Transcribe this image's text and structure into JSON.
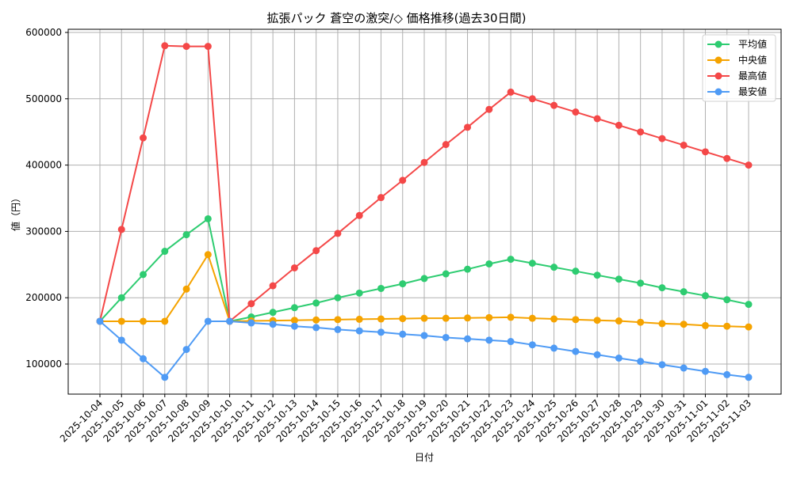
{
  "chart_data": {
    "type": "line",
    "title": "拡張パック 蒼空の激突/◇ 価格推移(過去30日間)",
    "xlabel": "日付",
    "ylabel": "値（円）",
    "ylim": [
      55000,
      605000
    ],
    "yticks": [
      100000,
      200000,
      300000,
      400000,
      500000,
      600000
    ],
    "ytick_labels": [
      "100000",
      "200000",
      "300000",
      "400000",
      "500000",
      "600000"
    ],
    "grid": true,
    "legend_position": "upper right",
    "x": [
      "2025-10-04",
      "2025-10-05",
      "2025-10-06",
      "2025-10-07",
      "2025-10-08",
      "2025-10-09",
      "2025-10-10",
      "2025-10-11",
      "2025-10-12",
      "2025-10-13",
      "2025-10-14",
      "2025-10-15",
      "2025-10-16",
      "2025-10-17",
      "2025-10-18",
      "2025-10-19",
      "2025-10-20",
      "2025-10-21",
      "2025-10-22",
      "2025-10-23",
      "2025-10-24",
      "2025-10-25",
      "2025-10-26",
      "2025-10-27",
      "2025-10-28",
      "2025-10-29",
      "2025-10-30",
      "2025-10-31",
      "2025-11-01",
      "2025-11-02",
      "2025-11-03"
    ],
    "series": [
      {
        "name": "平均値",
        "color": "#2ecc71",
        "values": [
          164500,
          200000,
          235000,
          270000,
          295000,
          319000,
          164500,
          171000,
          178000,
          185000,
          192000,
          200000,
          207000,
          214000,
          221000,
          229000,
          236000,
          243000,
          251000,
          258000,
          252000,
          246000,
          240000,
          234000,
          228000,
          222000,
          215000,
          209000,
          203000,
          197000,
          190000
        ]
      },
      {
        "name": "中央値",
        "color": "#f5a300",
        "values": [
          164500,
          164500,
          164500,
          164500,
          213000,
          265000,
          164500,
          165000,
          165500,
          166000,
          166500,
          167000,
          167500,
          168000,
          168500,
          169000,
          169000,
          169500,
          170000,
          170500,
          169000,
          168000,
          167000,
          166000,
          165000,
          163000,
          161000,
          160000,
          158000,
          157000,
          156000
        ]
      },
      {
        "name": "最高値",
        "color": "#f44848",
        "values": [
          164500,
          303000,
          441000,
          580000,
          579000,
          579000,
          164500,
          191000,
          218000,
          245000,
          271000,
          297000,
          324000,
          351000,
          377000,
          404000,
          431000,
          457000,
          484000,
          510000,
          500000,
          490000,
          480000,
          470000,
          460000,
          450000,
          440000,
          430000,
          420000,
          410000,
          400000
        ]
      },
      {
        "name": "最安値",
        "color": "#4f9bf5",
        "values": [
          164500,
          136000,
          108000,
          80000,
          122000,
          164500,
          164500,
          162000,
          160000,
          157000,
          155000,
          152000,
          150000,
          148000,
          145000,
          143000,
          140000,
          138000,
          136000,
          134000,
          129000,
          124000,
          119000,
          114000,
          109000,
          104000,
          99000,
          94000,
          89000,
          84000,
          80000
        ]
      }
    ]
  }
}
